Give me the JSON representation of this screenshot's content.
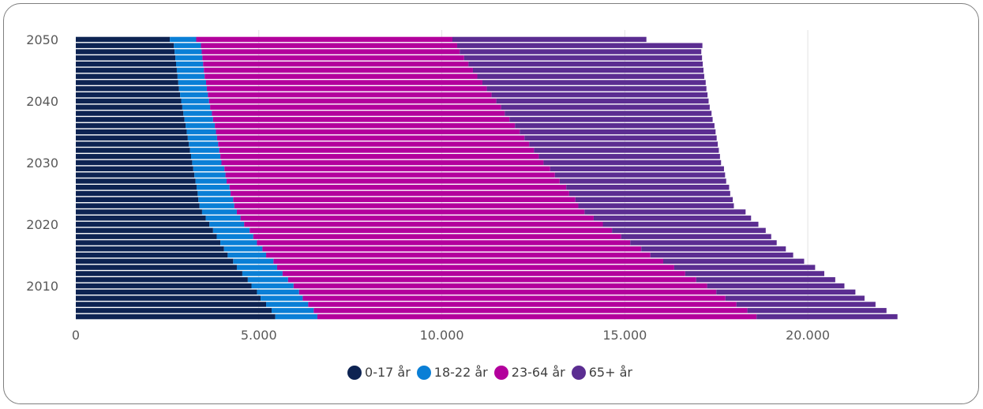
{
  "chart_data": {
    "type": "bar",
    "orientation": "horizontal",
    "stacked": true,
    "title": "",
    "xlabel": "",
    "ylabel": "",
    "xlim": [
      0,
      22500
    ],
    "x_ticks": [
      "0",
      "5.000",
      "10.000",
      "15.000",
      "20.000"
    ],
    "x_tick_values": [
      0,
      5000,
      10000,
      15000,
      20000
    ],
    "y_ticks": [
      "2010",
      "2020",
      "2030",
      "2040",
      "2050"
    ],
    "y_tick_values": [
      2010,
      2020,
      2030,
      2040,
      2050
    ],
    "grid": true,
    "legend_position": "bottom",
    "categories": [
      2005,
      2006,
      2007,
      2008,
      2009,
      2010,
      2011,
      2012,
      2013,
      2014,
      2015,
      2016,
      2017,
      2018,
      2019,
      2020,
      2021,
      2022,
      2023,
      2024,
      2025,
      2026,
      2027,
      2028,
      2029,
      2030,
      2031,
      2032,
      2033,
      2034,
      2035,
      2036,
      2037,
      2038,
      2039,
      2040,
      2041,
      2042,
      2043,
      2044,
      2045,
      2046,
      2047,
      2048,
      2049,
      2050
    ],
    "series": [
      {
        "name": "0-17 år",
        "color": "#0d2352",
        "values": [
          5450,
          5350,
          5200,
          5050,
          4950,
          4800,
          4700,
          4550,
          4400,
          4300,
          4150,
          4050,
          3950,
          3850,
          3750,
          3650,
          3550,
          3450,
          3380,
          3350,
          3330,
          3300,
          3270,
          3240,
          3210,
          3180,
          3150,
          3120,
          3090,
          3060,
          3030,
          3000,
          2970,
          2940,
          2910,
          2880,
          2850,
          2820,
          2800,
          2780,
          2760,
          2740,
          2720,
          2700,
          2680,
          2570
        ]
      },
      {
        "name": "18-22 år",
        "color": "#0a7fd6",
        "values": [
          1150,
          1150,
          1150,
          1150,
          1150,
          1150,
          1100,
          1100,
          1100,
          1100,
          1050,
          1050,
          1000,
          1000,
          1000,
          950,
          950,
          950,
          950,
          950,
          900,
          900,
          850,
          850,
          850,
          800,
          800,
          800,
          800,
          800,
          800,
          800,
          780,
          780,
          760,
          760,
          760,
          760,
          760,
          740,
          740,
          740,
          740,
          740,
          740,
          720
        ]
      },
      {
        "name": "23-64 år",
        "color": "#b3009c",
        "values": [
          12000,
          11850,
          11700,
          11550,
          11400,
          11300,
          11150,
          11000,
          10850,
          10650,
          10500,
          10350,
          10200,
          10050,
          9900,
          9800,
          9650,
          9500,
          9400,
          9350,
          9250,
          9200,
          9100,
          9000,
          8900,
          8800,
          8700,
          8600,
          8500,
          8400,
          8300,
          8200,
          8100,
          8000,
          7950,
          7850,
          7750,
          7650,
          7550,
          7450,
          7350,
          7250,
          7150,
          7050,
          7000,
          7000
        ]
      },
      {
        "name": "65+ år",
        "color": "#5b2d91",
        "values": [
          3850,
          3800,
          3800,
          3800,
          3800,
          3750,
          3800,
          3800,
          3850,
          3850,
          3900,
          3950,
          4000,
          4100,
          4200,
          4250,
          4300,
          4400,
          4250,
          4300,
          4400,
          4450,
          4550,
          4650,
          4750,
          4850,
          4950,
          5050,
          5150,
          5250,
          5350,
          5450,
          5550,
          5650,
          5700,
          5800,
          5900,
          6000,
          6100,
          6200,
          6300,
          6400,
          6500,
          6600,
          6700,
          5300
        ]
      }
    ]
  }
}
